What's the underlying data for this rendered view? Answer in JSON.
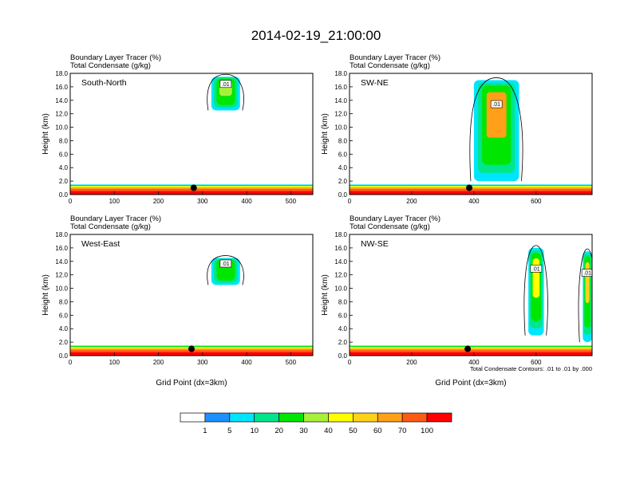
{
  "chart_data": {
    "type": "heatmap",
    "title": "2014-02-19_21:00:00",
    "panel_subtitle_lines": [
      "Boundary Layer Tracer   (%)",
      "Total Condensate   (g/kg)"
    ],
    "ylabel": "Height (km)",
    "xlabel": "Grid Point (dx=3km)",
    "ylim": [
      0,
      18
    ],
    "yticks": [
      "0.0",
      "2.0",
      "4.0",
      "6.0",
      "8.0",
      "10.0",
      "12.0",
      "14.0",
      "16.0",
      "18.0"
    ],
    "contour_note": "Total Condensate Contours: .01 to .01 by .000",
    "contour_label": ".01",
    "colorbar": {
      "levels": [
        1,
        5,
        10,
        20,
        30,
        40,
        50,
        60,
        70,
        100
      ],
      "colors": [
        "#ffffff",
        "#1e90ff",
        "#00e5ff",
        "#00e68a",
        "#00e600",
        "#a6f23a",
        "#ffff00",
        "#ffd21a",
        "#ffa018",
        "#ff5a14",
        "#ff0000"
      ]
    },
    "panels": [
      {
        "name": "South-North",
        "xlim": [
          0,
          550
        ],
        "xticks": [
          0,
          100,
          200,
          300,
          400,
          500
        ],
        "marker": {
          "x": 280,
          "y": 1.0
        },
        "boundary_layer_top_km": 1.5,
        "plumes": [
          {
            "x_start": 320,
            "x_end": 385,
            "bottom_km": 12.5,
            "top_km": 17.5,
            "peak_percent": 35
          }
        ]
      },
      {
        "name": "SW-NE",
        "xlim": [
          0,
          780
        ],
        "xticks": [
          0,
          200,
          400,
          600
        ],
        "marker": {
          "x": 385,
          "y": 1.0
        },
        "boundary_layer_top_km": 1.5,
        "plumes": [
          {
            "x_start": 400,
            "x_end": 545,
            "bottom_km": 2,
            "top_km": 17,
            "peak_percent": 65
          }
        ]
      },
      {
        "name": "West-East",
        "xlim": [
          0,
          550
        ],
        "xticks": [
          0,
          100,
          200,
          300,
          400,
          500
        ],
        "marker": {
          "x": 275,
          "y": 1.0
        },
        "boundary_layer_top_km": 1.5,
        "plumes": [
          {
            "x_start": 320,
            "x_end": 385,
            "bottom_km": 10.5,
            "top_km": 14.5,
            "peak_percent": 25
          }
        ]
      },
      {
        "name": "NW-SE",
        "xlim": [
          0,
          780
        ],
        "xticks": [
          0,
          200,
          400,
          600
        ],
        "marker": {
          "x": 380,
          "y": 1.0
        },
        "boundary_layer_top_km": 1.5,
        "plumes": [
          {
            "x_start": 575,
            "x_end": 625,
            "bottom_km": 3,
            "top_km": 16,
            "peak_percent": 45
          },
          {
            "x_start": 750,
            "x_end": 780,
            "bottom_km": 2,
            "top_km": 15.5,
            "peak_percent": 50
          }
        ]
      }
    ]
  }
}
